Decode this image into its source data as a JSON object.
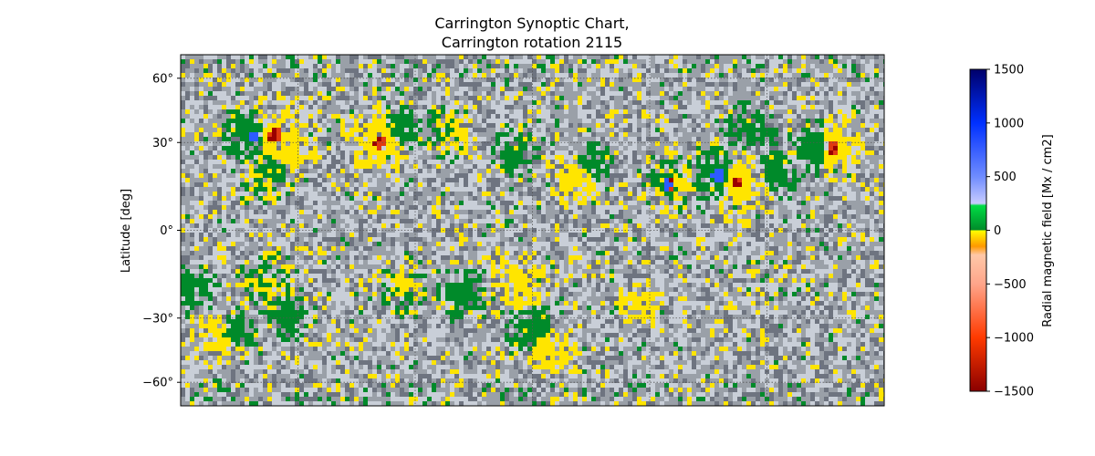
{
  "chart_data": {
    "type": "heatmap",
    "title_lines": [
      "Carrington Synoptic Chart,",
      "Carrington rotation 2115"
    ],
    "xlabel": "",
    "ylabel": "Latitude [deg]",
    "yticks": [
      {
        "value": 60,
        "label": "60°"
      },
      {
        "value": 30,
        "label": "30°"
      },
      {
        "value": 0,
        "label": "0°"
      },
      {
        "value": -30,
        "label": "−30°"
      },
      {
        "value": -60,
        "label": "−60°"
      }
    ],
    "ylim": [
      -90,
      90
    ],
    "xlim": [
      0,
      360
    ],
    "grid": true,
    "colorbar": {
      "label": "Radial magnetic field [Mx / cm2]",
      "range": [
        -1500,
        1500
      ],
      "ticks": [
        {
          "value": 1500,
          "label": "1500"
        },
        {
          "value": 1000,
          "label": "1000"
        },
        {
          "value": 500,
          "label": "500"
        },
        {
          "value": 0,
          "label": "0"
        },
        {
          "value": -500,
          "label": "−500"
        },
        {
          "value": -1000,
          "label": "−1000"
        },
        {
          "value": -1500,
          "label": "−1500"
        }
      ],
      "stops": [
        {
          "value": 1500,
          "color": "#00006a"
        },
        {
          "value": 1000,
          "color": "#0030ff"
        },
        {
          "value": 500,
          "color": "#6f8cff"
        },
        {
          "value": 250,
          "color": "#c8ccff"
        },
        {
          "value": 230,
          "color": "#00dd44"
        },
        {
          "value": 0,
          "color": "#008a2a"
        },
        {
          "value": -1,
          "color": "#ffff00"
        },
        {
          "value": -150,
          "color": "#ff9900"
        },
        {
          "value": -230,
          "color": "#ffc8a8"
        },
        {
          "value": -500,
          "color": "#ffa58a"
        },
        {
          "value": -1000,
          "color": "#ff3a00"
        },
        {
          "value": -1500,
          "color": "#8a0000"
        }
      ]
    },
    "map_colors": {
      "background": "#9aa0a8",
      "noise_light": "#c9cfd8",
      "noise_dark": "#6e7480",
      "positive_weak": "#008a2a",
      "negative_weak": "#ffe500",
      "positive_strong": "#2d5cff",
      "negative_strong": "#e03a10",
      "negative_core": "#9a0000"
    },
    "active_regions": [
      {
        "lon": 37,
        "lat": 32,
        "polarity": "positive",
        "strength": 0.8
      },
      {
        "lon": 48,
        "lat": 33,
        "polarity": "negative",
        "strength": 1.0
      },
      {
        "lon": 43,
        "lat": 18,
        "polarity": "mixed",
        "strength": 0.7
      },
      {
        "lon": 57,
        "lat": 28,
        "polarity": "negative",
        "strength": 0.6
      },
      {
        "lon": 102,
        "lat": 30,
        "polarity": "negative",
        "strength": 0.9
      },
      {
        "lon": 113,
        "lat": 35,
        "polarity": "positive",
        "strength": 0.5
      },
      {
        "lon": 138,
        "lat": 35,
        "polarity": "mixed",
        "strength": 0.6
      },
      {
        "lon": 172,
        "lat": 25,
        "polarity": "positive",
        "strength": 0.4
      },
      {
        "lon": 203,
        "lat": 18,
        "polarity": "negative",
        "strength": 0.6
      },
      {
        "lon": 210,
        "lat": 22,
        "polarity": "positive",
        "strength": 0.4
      },
      {
        "lon": 250,
        "lat": 15,
        "polarity": "mixed",
        "strength": 0.8
      },
      {
        "lon": 275,
        "lat": 18,
        "polarity": "positive",
        "strength": 0.9
      },
      {
        "lon": 285,
        "lat": 16,
        "polarity": "negative",
        "strength": 1.0
      },
      {
        "lon": 290,
        "lat": 35,
        "polarity": "positive",
        "strength": 0.5
      },
      {
        "lon": 305,
        "lat": 20,
        "polarity": "positive",
        "strength": 0.6
      },
      {
        "lon": 325,
        "lat": 28,
        "polarity": "positive",
        "strength": 0.7
      },
      {
        "lon": 334,
        "lat": 28,
        "polarity": "negative",
        "strength": 0.8
      },
      {
        "lon": 45,
        "lat": -18,
        "polarity": "mixed",
        "strength": 0.7
      },
      {
        "lon": 55,
        "lat": -28,
        "polarity": "positive",
        "strength": 0.5
      },
      {
        "lon": 115,
        "lat": -20,
        "polarity": "mixed",
        "strength": 0.6
      },
      {
        "lon": 145,
        "lat": -22,
        "polarity": "positive",
        "strength": 0.5
      },
      {
        "lon": 175,
        "lat": -17,
        "polarity": "negative",
        "strength": 0.6
      },
      {
        "lon": 180,
        "lat": -35,
        "polarity": "positive",
        "strength": 0.5
      },
      {
        "lon": 20,
        "lat": -38,
        "polarity": "negative",
        "strength": 0.6
      },
      {
        "lon": 28,
        "lat": -35,
        "polarity": "positive",
        "strength": 0.4
      },
      {
        "lon": 190,
        "lat": -42,
        "polarity": "negative",
        "strength": 0.6
      },
      {
        "lon": 235,
        "lat": -25,
        "polarity": "negative",
        "strength": 0.4
      },
      {
        "lon": 6,
        "lat": -20,
        "polarity": "positive",
        "strength": 0.4
      }
    ]
  }
}
